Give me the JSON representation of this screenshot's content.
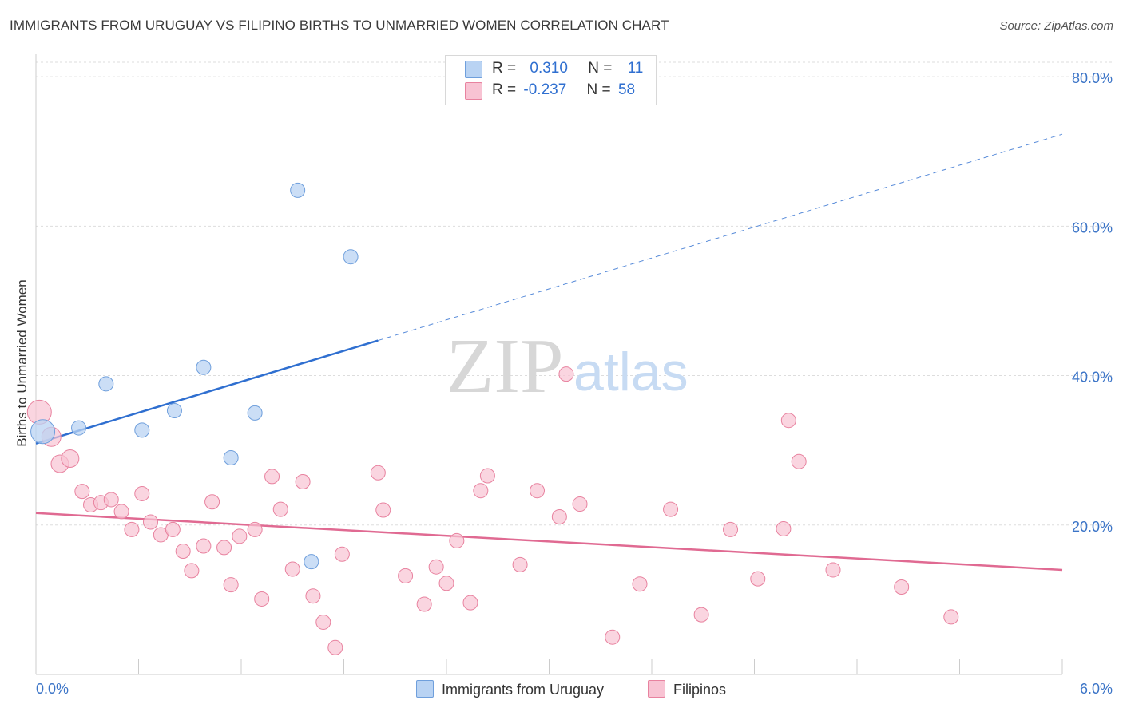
{
  "title": "IMMIGRANTS FROM URUGUAY VS FILIPINO BIRTHS TO UNMARRIED WOMEN CORRELATION CHART",
  "source": "Source: ZipAtlas.com",
  "watermark": {
    "zip": "ZIP",
    "atlas": "atlas"
  },
  "legend_top": [
    {
      "r_label": "R =",
      "r_value": "0.310",
      "n_label": "N =",
      "n_value": "11"
    },
    {
      "r_label": "R =",
      "r_value": "-0.237",
      "n_label": "N =",
      "n_value": "58"
    }
  ],
  "colors": {
    "blue_fill": "#b9d3f3",
    "blue_stroke": "#6f9fdc",
    "blue_line": "#2f6fd0",
    "pink_fill": "#f8c3d3",
    "pink_stroke": "#e8829f",
    "pink_line": "#e06a92",
    "tick_label": "#3b74c7",
    "grid": "#dddddd"
  },
  "chart_data": {
    "type": "scatter",
    "title": "IMMIGRANTS FROM URUGUAY VS FILIPINO BIRTHS TO UNMARRIED WOMEN CORRELATION CHART",
    "xlabel": "",
    "ylabel": "Births to Unmarried Women",
    "xlim": [
      0,
      6
    ],
    "ylim": [
      0,
      83
    ],
    "x_tick_labels": [
      "0.0%",
      "6.0%"
    ],
    "y_ticks": [
      20,
      40,
      60,
      80
    ],
    "y_tick_labels": [
      "20.0%",
      "40.0%",
      "60.0%",
      "80.0%"
    ],
    "grid": true,
    "legend_position": "bottom-center",
    "series": [
      {
        "name": "Immigrants from Uruguay",
        "color": "#6f9fdc",
        "points": [
          [
            0.04,
            32.5,
            15
          ],
          [
            0.25,
            33.0,
            9
          ],
          [
            0.41,
            38.9,
            9
          ],
          [
            0.62,
            32.7,
            9
          ],
          [
            0.81,
            35.3,
            9
          ],
          [
            0.98,
            41.1,
            9
          ],
          [
            1.14,
            29.0,
            9
          ],
          [
            1.28,
            35.0,
            9
          ],
          [
            1.53,
            64.8,
            9
          ],
          [
            1.84,
            55.9,
            9
          ],
          [
            1.61,
            15.1,
            9
          ]
        ],
        "trend": {
          "x": [
            0.0,
            2.0
          ],
          "y": [
            30.9,
            44.7
          ],
          "style": "solid"
        },
        "trend_extension": {
          "x": [
            2.0,
            6.0
          ],
          "y": [
            44.7,
            72.3
          ],
          "style": "dashed"
        }
      },
      {
        "name": "Filipinos",
        "color": "#e8829f",
        "points": [
          [
            0.02,
            35.1,
            15
          ],
          [
            0.09,
            31.8,
            12
          ],
          [
            0.14,
            28.2,
            11
          ],
          [
            0.2,
            28.9,
            11
          ],
          [
            0.27,
            24.5,
            9
          ],
          [
            0.32,
            22.7,
            9
          ],
          [
            0.38,
            23.0,
            9
          ],
          [
            0.44,
            23.4,
            9
          ],
          [
            0.5,
            21.8,
            9
          ],
          [
            0.56,
            19.4,
            9
          ],
          [
            0.62,
            24.2,
            9
          ],
          [
            0.67,
            20.4,
            9
          ],
          [
            0.73,
            18.7,
            9
          ],
          [
            0.8,
            19.4,
            9
          ],
          [
            0.86,
            16.5,
            9
          ],
          [
            0.91,
            13.9,
            9
          ],
          [
            0.98,
            17.2,
            9
          ],
          [
            1.03,
            23.1,
            9
          ],
          [
            1.1,
            17.0,
            9
          ],
          [
            1.14,
            12.0,
            9
          ],
          [
            1.19,
            18.5,
            9
          ],
          [
            1.28,
            19.4,
            9
          ],
          [
            1.32,
            10.1,
            9
          ],
          [
            1.38,
            26.5,
            9
          ],
          [
            1.43,
            22.1,
            9
          ],
          [
            1.5,
            14.1,
            9
          ],
          [
            1.56,
            25.8,
            9
          ],
          [
            1.62,
            10.5,
            9
          ],
          [
            1.68,
            7.0,
            9
          ],
          [
            1.75,
            3.6,
            9
          ],
          [
            1.79,
            16.1,
            9
          ],
          [
            2.0,
            27.0,
            9
          ],
          [
            2.03,
            22.0,
            9
          ],
          [
            2.16,
            13.2,
            9
          ],
          [
            2.27,
            9.4,
            9
          ],
          [
            2.34,
            14.4,
            9
          ],
          [
            2.4,
            12.2,
            9
          ],
          [
            2.46,
            17.9,
            9
          ],
          [
            2.54,
            9.6,
            9
          ],
          [
            2.6,
            24.6,
            9
          ],
          [
            2.64,
            26.6,
            9
          ],
          [
            2.83,
            14.7,
            9
          ],
          [
            2.93,
            24.6,
            9
          ],
          [
            3.06,
            21.1,
            9
          ],
          [
            3.1,
            40.2,
            9
          ],
          [
            3.18,
            22.8,
            9
          ],
          [
            3.37,
            5.0,
            9
          ],
          [
            3.53,
            12.1,
            9
          ],
          [
            3.71,
            22.1,
            9
          ],
          [
            3.89,
            8.0,
            9
          ],
          [
            4.06,
            19.4,
            9
          ],
          [
            4.22,
            12.8,
            9
          ],
          [
            4.37,
            19.5,
            9
          ],
          [
            4.4,
            34.0,
            9
          ],
          [
            4.46,
            28.5,
            9
          ],
          [
            4.66,
            14.0,
            9
          ],
          [
            5.06,
            11.7,
            9
          ],
          [
            5.35,
            7.7,
            9
          ]
        ],
        "trend": {
          "x": [
            0.0,
            6.0
          ],
          "y": [
            21.6,
            14.0
          ],
          "style": "solid"
        }
      }
    ]
  }
}
